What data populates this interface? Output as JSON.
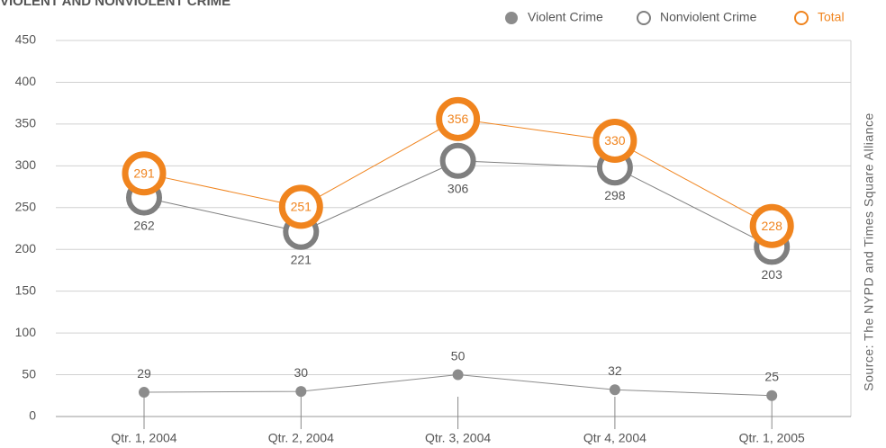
{
  "chart_data": {
    "type": "line",
    "title": "VIOLENT AND NONVIOLENT CRIME",
    "source": "Source: The NYPD and Times Square Alliance",
    "categories": [
      "Qtr. 1, 2004",
      "Qtr. 2, 2004",
      "Qtr. 3, 2004",
      "Qtr 4, 2004",
      "Qtr. 1, 2005"
    ],
    "series": [
      {
        "name": "Violent Crime",
        "color": "#8c8c8c",
        "values": [
          29,
          30,
          50,
          32,
          25
        ]
      },
      {
        "name": "Nonviolent Crime",
        "color": "#7f7f7f",
        "values": [
          262,
          221,
          306,
          298,
          203
        ]
      },
      {
        "name": "Total",
        "color": "#f0841e",
        "values": [
          291,
          251,
          356,
          330,
          228
        ]
      }
    ],
    "ylim": [
      0,
      450
    ],
    "yticks": [
      0,
      50,
      100,
      150,
      200,
      250,
      300,
      350,
      400,
      450
    ],
    "grid": true,
    "legend": "upper right"
  }
}
